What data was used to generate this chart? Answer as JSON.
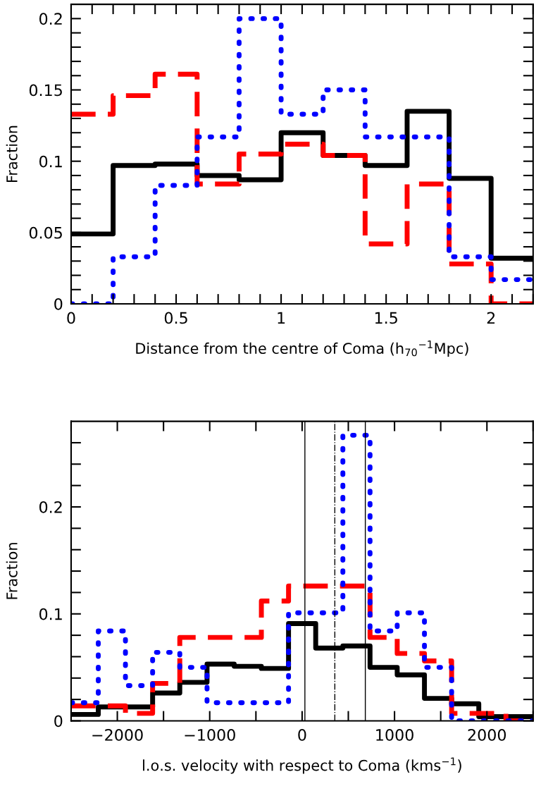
{
  "chart_data": [
    {
      "type": "histogram",
      "xlabel": "Distance from the centre of Coma (h$_{70}$$^{−1}$Mpc)",
      "ylabel": "Fraction",
      "bins": [
        0,
        0.2,
        0.4,
        0.6,
        0.8,
        1.0,
        1.2,
        1.4,
        1.6,
        1.8,
        2.0,
        2.2
      ],
      "series": [
        {
          "color": "#000000",
          "line_style": "solid",
          "values": [
            0.049,
            0.097,
            0.098,
            0.09,
            0.087,
            0.12,
            0.104,
            0.097,
            0.135,
            0.088,
            0.032
          ]
        },
        {
          "color": "#ff0000",
          "line_style": "dashed",
          "values": [
            0.133,
            0.146,
            0.161,
            0.084,
            0.105,
            0.112,
            0.104,
            0.042,
            0.084,
            0.028,
            0
          ]
        },
        {
          "color": "#0000ff",
          "line_style": "dotted",
          "values": [
            0,
            0.033,
            0.083,
            0.117,
            0.2,
            0.133,
            0.15,
            0.117,
            0.117,
            0.033,
            0.017
          ]
        }
      ],
      "xlim": [
        0,
        2.2
      ],
      "ylim": [
        0,
        0.21
      ],
      "xticks": [
        0,
        {
          "value": 0.1,
          "label": null
        },
        {
          "value": 0.2,
          "label": null
        },
        {
          "value": 0.3,
          "label": null
        },
        {
          "value": 0.4,
          "label": null
        },
        0.5,
        {
          "value": 0.6,
          "label": null
        },
        {
          "value": 0.7,
          "label": null
        },
        {
          "value": 0.8,
          "label": null
        },
        {
          "value": 0.9,
          "label": null
        },
        1,
        {
          "value": 1.1,
          "label": null
        },
        {
          "value": 1.2,
          "label": null
        },
        {
          "value": 1.3,
          "label": null
        },
        {
          "value": 1.4,
          "label": null
        },
        1.5,
        {
          "value": 1.6,
          "label": null
        },
        {
          "value": 1.7,
          "label": null
        },
        {
          "value": 1.8,
          "label": null
        },
        {
          "value": 1.9,
          "label": null
        },
        2,
        {
          "value": 2.1,
          "label": null
        },
        {
          "value": 2.2,
          "label": null
        }
      ],
      "yticks": [
        0,
        {
          "value": 0.01,
          "label": null
        },
        {
          "value": 0.02,
          "label": null
        },
        {
          "value": 0.03,
          "label": null
        },
        {
          "value": 0.04,
          "label": null
        },
        0.05,
        {
          "value": 0.06,
          "label": null
        },
        {
          "value": 0.07,
          "label": null
        },
        {
          "value": 0.08,
          "label": null
        },
        {
          "value": 0.09,
          "label": null
        },
        0.1,
        {
          "value": 0.11,
          "label": null
        },
        {
          "value": 0.12,
          "label": null
        },
        {
          "value": 0.13,
          "label": null
        },
        {
          "value": 0.14,
          "label": null
        },
        0.15,
        {
          "value": 0.16,
          "label": null
        },
        {
          "value": 0.17,
          "label": null
        },
        {
          "value": 0.18,
          "label": null
        },
        {
          "value": 0.19,
          "label": null
        },
        0.2
      ]
    },
    {
      "type": "histogram",
      "xlabel": "l.o.s. velocity with respect to Coma (kms$^{−1}$)",
      "ylabel": "Fraction",
      "bins": [
        -2500,
        -2206,
        -1912,
        -1618,
        -1324,
        -1029,
        -735,
        -441,
        -147,
        147,
        441,
        735,
        1029,
        1324,
        1618,
        1912,
        2206,
        2500
      ],
      "series": [
        {
          "color": "#000000",
          "line_style": "solid",
          "values": [
            0.006,
            0.013,
            0.013,
            0.026,
            0.036,
            0.053,
            0.051,
            0.049,
            0.091,
            0.068,
            0.07,
            0.05,
            0.043,
            0.021,
            0.016,
            0.004,
            0.004
          ]
        },
        {
          "color": "#ff0000",
          "line_style": "dashed",
          "values": [
            0.014,
            0.014,
            0.007,
            0.035,
            0.078,
            0.078,
            0.078,
            0.112,
            0.126,
            0.126,
            0.126,
            0.078,
            0.063,
            0.056,
            0.007,
            0.007,
            0
          ]
        },
        {
          "color": "#0000ff",
          "line_style": "dotted",
          "values": [
            0.017,
            0.084,
            0.033,
            0.064,
            0.05,
            0.017,
            0.017,
            0.017,
            0.101,
            0.101,
            0.267,
            0.084,
            0.101,
            0.05,
            0,
            0,
            0
          ]
        }
      ],
      "ref_lines": [
        {
          "axis": "x",
          "value": 30,
          "color": "#000000",
          "line_style": "solid"
        },
        {
          "axis": "x",
          "value": 684,
          "color": "#000000",
          "line_style": "solid"
        },
        {
          "axis": "x",
          "value": 354,
          "color": "#000000",
          "line_style": "dashdot"
        }
      ],
      "xlim": [
        -2500,
        2500
      ],
      "ylim": [
        0,
        0.28
      ],
      "xticks": [
        {
          "value": -2500,
          "label": null
        },
        {
          "value": -2000,
          "label": "−2000"
        },
        {
          "value": -1500,
          "label": null
        },
        {
          "value": -1000,
          "label": "−1000"
        },
        {
          "value": -500,
          "label": null
        },
        0,
        {
          "value": 500,
          "label": null
        },
        1000,
        {
          "value": 1500,
          "label": null
        },
        2000,
        {
          "value": 2500,
          "label": null
        }
      ],
      "yticks": [
        0,
        {
          "value": 0.02,
          "label": null
        },
        {
          "value": 0.04,
          "label": null
        },
        {
          "value": 0.06,
          "label": null
        },
        {
          "value": 0.08,
          "label": null
        },
        0.1,
        {
          "value": 0.12,
          "label": null
        },
        {
          "value": 0.14,
          "label": null
        },
        {
          "value": 0.16,
          "label": null
        },
        {
          "value": 0.18,
          "label": null
        },
        0.2,
        {
          "value": 0.22,
          "label": null
        },
        {
          "value": 0.24,
          "label": null
        },
        {
          "value": 0.26,
          "label": null
        }
      ]
    }
  ]
}
